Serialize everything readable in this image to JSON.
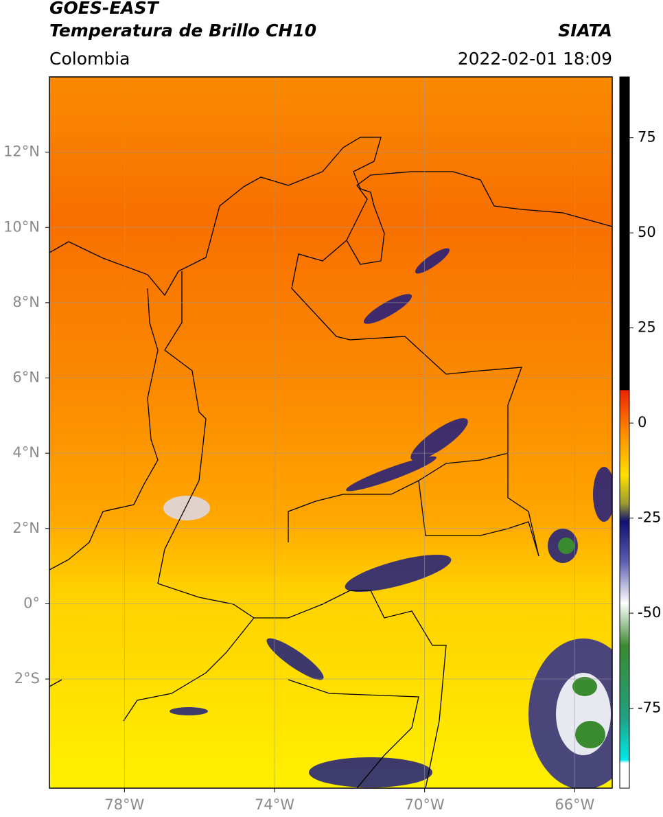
{
  "header": {
    "title": "GOES-EAST",
    "subtitle": "Temperatura de Brillo CH10",
    "source": "SIATA",
    "region": "Colombia",
    "datetime": "2022-02-01 18:09"
  },
  "map": {
    "xlim": [
      -80,
      -65
    ],
    "ylim": [
      -4.9,
      14
    ],
    "xticks": [
      {
        "value": -78,
        "label": "78°W"
      },
      {
        "value": -74,
        "label": "74°W"
      },
      {
        "value": -70,
        "label": "70°W"
      },
      {
        "value": -66,
        "label": "66°W"
      }
    ],
    "yticks": [
      {
        "value": 12,
        "label": "12°N"
      },
      {
        "value": 10,
        "label": "10°N"
      },
      {
        "value": 8,
        "label": "8°N"
      },
      {
        "value": 6,
        "label": "6°N"
      },
      {
        "value": 4,
        "label": "4°N"
      },
      {
        "value": 2,
        "label": "2°N"
      },
      {
        "value": 0,
        "label": "0°"
      },
      {
        "value": -2,
        "label": "2°S"
      }
    ],
    "grid": true
  },
  "colorbar": {
    "lim": [
      -96,
      91
    ],
    "ticks": [
      75,
      50,
      25,
      0,
      -25,
      -50,
      -75
    ]
  }
}
